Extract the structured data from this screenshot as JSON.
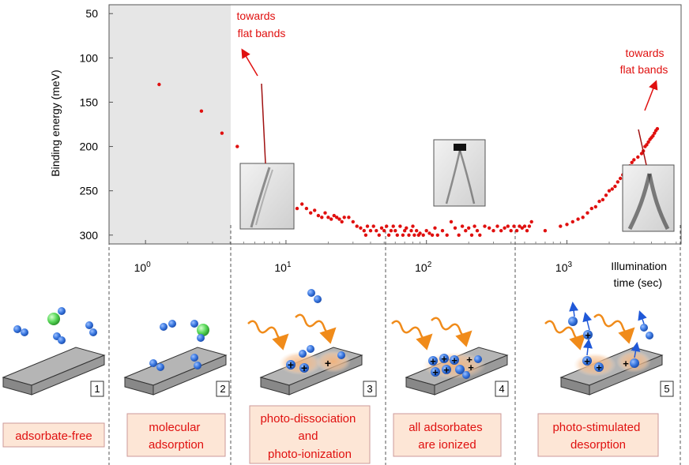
{
  "chart_data": {
    "type": "scatter",
    "ylabel": "Binding energy (meV)",
    "xlabel_lines": [
      "Illumination",
      "time (sec)"
    ],
    "x_scale": "log",
    "y_inverted": true,
    "xlim": [
      0.55,
      6500
    ],
    "ylim": [
      40,
      310
    ],
    "y_ticks": [
      50,
      100,
      150,
      200,
      250,
      300
    ],
    "x_ticks": [
      {
        "value": 1,
        "base": "10",
        "exp": "0"
      },
      {
        "value": 10,
        "base": "10",
        "exp": "1"
      },
      {
        "value": 100,
        "base": "10",
        "exp": "2"
      },
      {
        "value": 1000,
        "base": "10",
        "exp": "3"
      }
    ],
    "color": "#e0100f",
    "series": [
      {
        "points": [
          [
            1.25,
            130
          ],
          [
            2.5,
            160
          ],
          [
            3.5,
            185
          ],
          [
            4.5,
            200
          ],
          [
            5.5,
            230
          ],
          [
            6.5,
            240
          ],
          [
            7.5,
            250
          ],
          [
            8.5,
            255
          ],
          [
            9.5,
            260
          ],
          [
            11,
            262
          ],
          [
            12,
            270
          ],
          [
            13,
            265
          ],
          [
            14,
            270
          ],
          [
            15,
            275
          ],
          [
            16,
            272
          ],
          [
            17,
            278
          ],
          [
            18,
            280
          ],
          [
            19,
            275
          ],
          [
            20,
            280
          ],
          [
            21,
            282
          ],
          [
            22,
            278
          ],
          [
            23,
            280
          ],
          [
            24,
            282
          ],
          [
            25,
            285
          ],
          [
            26,
            280
          ],
          [
            28,
            280
          ],
          [
            30,
            285
          ],
          [
            32,
            290
          ],
          [
            34,
            292
          ],
          [
            36,
            295
          ],
          [
            37,
            300
          ],
          [
            38,
            290
          ],
          [
            40,
            295
          ],
          [
            42,
            290
          ],
          [
            44,
            295
          ],
          [
            46,
            300
          ],
          [
            48,
            292
          ],
          [
            50,
            295
          ],
          [
            52,
            290
          ],
          [
            54,
            300
          ],
          [
            56,
            295
          ],
          [
            58,
            290
          ],
          [
            60,
            295
          ],
          [
            62,
            300
          ],
          [
            65,
            290
          ],
          [
            68,
            300
          ],
          [
            70,
            295
          ],
          [
            72,
            292
          ],
          [
            75,
            300
          ],
          [
            78,
            295
          ],
          [
            80,
            290
          ],
          [
            82,
            300
          ],
          [
            85,
            295
          ],
          [
            88,
            300
          ],
          [
            90,
            298
          ],
          [
            95,
            300
          ],
          [
            100,
            295
          ],
          [
            105,
            298
          ],
          [
            110,
            300
          ],
          [
            115,
            292
          ],
          [
            120,
            300
          ],
          [
            130,
            295
          ],
          [
            140,
            300
          ],
          [
            150,
            285
          ],
          [
            160,
            292
          ],
          [
            170,
            300
          ],
          [
            180,
            290
          ],
          [
            190,
            295
          ],
          [
            200,
            292
          ],
          [
            210,
            300
          ],
          [
            220,
            290
          ],
          [
            230,
            295
          ],
          [
            240,
            300
          ],
          [
            260,
            290
          ],
          [
            280,
            292
          ],
          [
            300,
            295
          ],
          [
            320,
            290
          ],
          [
            340,
            295
          ],
          [
            360,
            292
          ],
          [
            380,
            290
          ],
          [
            400,
            295
          ],
          [
            420,
            290
          ],
          [
            440,
            295
          ],
          [
            460,
            290
          ],
          [
            480,
            292
          ],
          [
            500,
            290
          ],
          [
            520,
            295
          ],
          [
            540,
            290
          ],
          [
            560,
            285
          ],
          [
            700,
            295
          ],
          [
            900,
            290
          ],
          [
            1000,
            288
          ],
          [
            1100,
            285
          ],
          [
            1200,
            282
          ],
          [
            1300,
            280
          ],
          [
            1400,
            275
          ],
          [
            1500,
            270
          ],
          [
            1600,
            268
          ],
          [
            1700,
            262
          ],
          [
            1800,
            260
          ],
          [
            1900,
            255
          ],
          [
            2000,
            250
          ],
          [
            2100,
            248
          ],
          [
            2200,
            245
          ],
          [
            2300,
            240
          ],
          [
            2400,
            236
          ],
          [
            2500,
            232
          ],
          [
            2600,
            228
          ],
          [
            2700,
            225
          ],
          [
            2800,
            222
          ],
          [
            2900,
            218
          ],
          [
            3000,
            215
          ],
          [
            3200,
            212
          ],
          [
            3400,
            208
          ],
          [
            3500,
            205
          ],
          [
            3600,
            200
          ],
          [
            3700,
            198
          ],
          [
            3800,
            195
          ],
          [
            3900,
            192
          ],
          [
            4000,
            190
          ],
          [
            4100,
            188
          ],
          [
            4200,
            185
          ],
          [
            4300,
            182
          ],
          [
            4400,
            180
          ]
        ]
      }
    ],
    "annotations": [
      {
        "lines": [
          "towards",
          "flat bands"
        ],
        "position": "top-left"
      },
      {
        "lines": [
          "towards",
          "flat bands"
        ],
        "position": "top-right"
      }
    ]
  },
  "stages": [
    {
      "number": "1",
      "label_lines": [
        "adsorbate-free"
      ]
    },
    {
      "number": "2",
      "label_lines": [
        "molecular",
        "adsorption"
      ]
    },
    {
      "number": "3",
      "label_lines": [
        "photo-dissociation",
        "and",
        "photo-ionization"
      ]
    },
    {
      "number": "4",
      "label_lines": [
        "all adsorbates",
        "are ionized"
      ]
    },
    {
      "number": "5",
      "label_lines": [
        "photo-stimulated",
        "desorption"
      ]
    }
  ],
  "charges": {
    "symbol": "+"
  },
  "colors": {
    "accent_red": "#e0100f",
    "label_box_fill": "#fde6d6",
    "molecule_blue": "#3a78e0",
    "molecule_green": "#58d858",
    "photon_orange": "#f08b1a",
    "slab_gray": "#9a9a9a",
    "shaded_region": "#e6e6e6"
  }
}
